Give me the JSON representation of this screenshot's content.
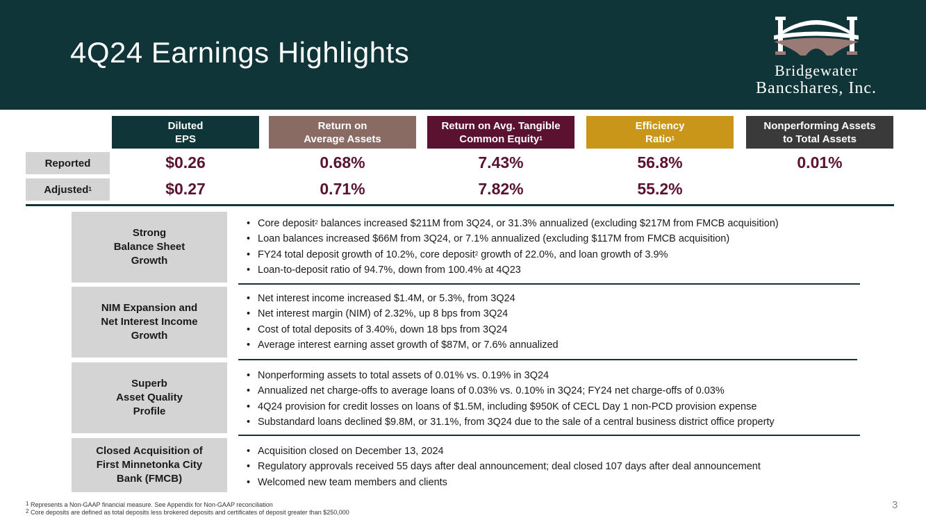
{
  "title": "4Q24 Earnings Highlights",
  "logo": {
    "line1": "Bridgewater",
    "line2": "Bancshares, Inc."
  },
  "colors": {
    "banner": "#0f3539",
    "eps": "#0f3539",
    "roaa": "#8a6b64",
    "rotce": "#5a1230",
    "efficiency": "#c9961a",
    "npa": "#3a3a3a",
    "value_text": "#5a1230"
  },
  "metrics": {
    "headers": [
      {
        "line1": "Diluted",
        "line2": "EPS",
        "sup": ""
      },
      {
        "line1": "Return on",
        "line2": "Average Assets",
        "sup": ""
      },
      {
        "line1": "Return on Avg. Tangible",
        "line2": "Common Equity",
        "sup": "1"
      },
      {
        "line1": "Efficiency",
        "line2": "Ratio",
        "sup": "1"
      },
      {
        "line1": "Nonperforming Assets",
        "line2": "to Total Assets",
        "sup": ""
      }
    ],
    "reported_label": "Reported",
    "adjusted_label": "Adjusted",
    "adjusted_sup": "1",
    "reported": [
      "$0.26",
      "0.68%",
      "7.43%",
      "56.8%",
      "0.01%"
    ],
    "adjusted": [
      "$0.27",
      "0.71%",
      "7.82%",
      "55.2%"
    ]
  },
  "sections": [
    {
      "label": [
        "Strong",
        "Balance Sheet",
        "Growth"
      ],
      "bullets": [
        [
          "Core deposit",
          "2",
          " balances increased $211M from 3Q24, or 31.3% annualized (excluding $217M from FMCB acquisition)"
        ],
        [
          "Loan balances increased $66M from 3Q24, or 7.1% annualized (excluding $117M from FMCB acquisition)",
          "",
          ""
        ],
        [
          "FY24 total deposit growth of 10.2%, core deposit",
          "2",
          " growth of 22.0%, and loan growth of 3.9%"
        ],
        [
          "Loan-to-deposit ratio of 94.7%, down from 100.4% at 4Q23",
          "",
          ""
        ]
      ]
    },
    {
      "label": [
        "NIM Expansion and",
        "Net Interest Income",
        "Growth"
      ],
      "bullets": [
        [
          "Net interest income increased $1.4M, or 5.3%, from 3Q24",
          "",
          ""
        ],
        [
          "Net interest margin (NIM) of 2.32%, up 8 bps from 3Q24",
          "",
          ""
        ],
        [
          "Cost of total deposits of 3.40%, down 18 bps from 3Q24",
          "",
          ""
        ],
        [
          "Average interest earning asset growth of $87M, or 7.6% annualized",
          "",
          ""
        ]
      ]
    },
    {
      "label": [
        "Superb",
        "Asset Quality",
        "Profile"
      ],
      "bullets": [
        [
          "Nonperforming assets to total assets of 0.01% vs. 0.19% in 3Q24",
          "",
          ""
        ],
        [
          "Annualized net charge-offs to average loans of 0.03% vs. 0.10% in 3Q24; FY24 net charge-offs of 0.03%",
          "",
          ""
        ],
        [
          "4Q24 provision for credit losses on loans of $1.5M, including $950K of CECL Day 1 non-PCD provision expense",
          "",
          ""
        ],
        [
          "Substandard loans declined $9.8M, or 31.1%, from 3Q24 due to the sale of a central business district office property",
          "",
          ""
        ]
      ]
    },
    {
      "label": [
        "Closed Acquisition of",
        "First Minnetonka City",
        "Bank (FMCB)"
      ],
      "bullets": [
        [
          "Acquisition closed on December 13, 2024",
          "",
          ""
        ],
        [
          "Regulatory approvals received 55 days after deal announcement; deal closed 107 days after deal announcement",
          "",
          ""
        ],
        [
          "Welcomed new team members and clients",
          "",
          ""
        ]
      ]
    }
  ],
  "footnotes": [
    {
      "sup": "1",
      "text": " Represents a Non-GAAP financial measure. See Appendix for Non-GAAP reconciliation"
    },
    {
      "sup": "2",
      "text": " Core deposits are defined as total deposits less brokered deposits and certificates of deposit greater than $250,000"
    }
  ],
  "page_number": "3"
}
